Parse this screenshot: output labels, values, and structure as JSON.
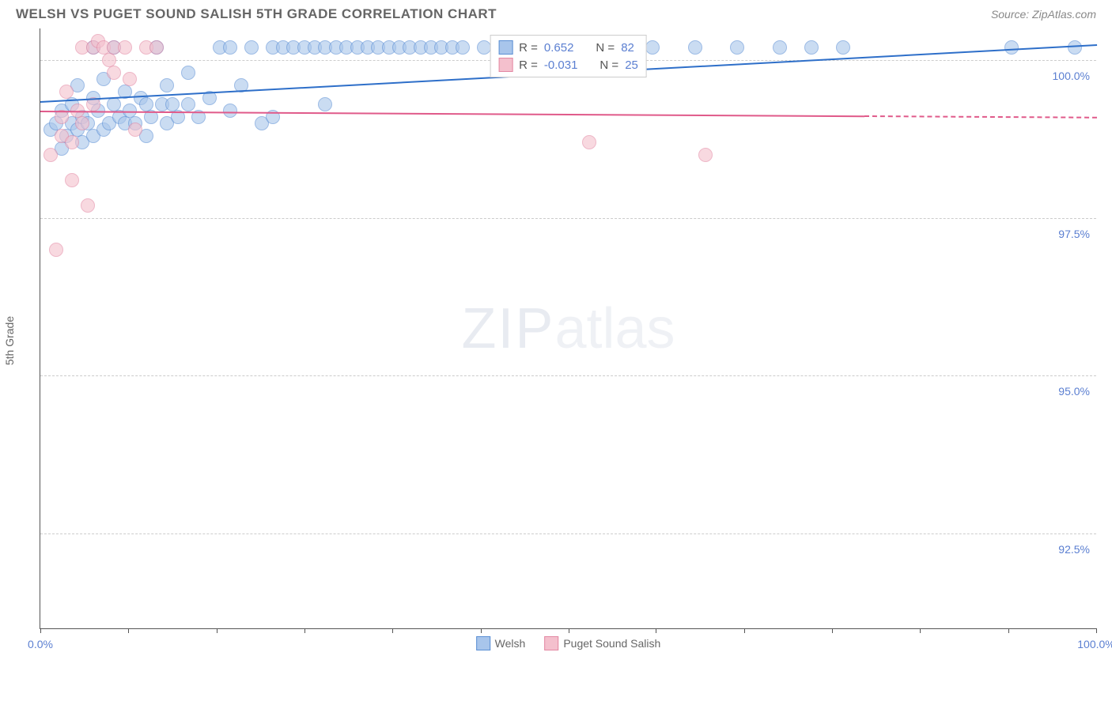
{
  "header": {
    "title": "WELSH VS PUGET SOUND SALISH 5TH GRADE CORRELATION CHART",
    "source": "Source: ZipAtlas.com"
  },
  "chart": {
    "type": "scatter",
    "y_axis_label": "5th Grade",
    "background_color": "#ffffff",
    "grid_color": "#cccccc",
    "axis_color": "#555555",
    "label_color": "#5b7fd1",
    "xlim": [
      0,
      100
    ],
    "ylim": [
      91.0,
      100.5
    ],
    "x_ticks": [
      0,
      8.3,
      16.7,
      25,
      33.3,
      41.7,
      50,
      58.3,
      66.7,
      75,
      83.3,
      91.7,
      100
    ],
    "x_tick_labels": {
      "0": "0.0%",
      "100": "100.0%"
    },
    "y_gridlines": [
      92.5,
      95.0,
      97.5,
      100.0
    ],
    "y_tick_labels": {
      "92.5": "92.5%",
      "95.0": "95.0%",
      "97.5": "97.5%",
      "100.0": "100.0%"
    },
    "marker_size": 18,
    "series": [
      {
        "name": "Welsh",
        "color_fill": "#a8c5eb",
        "color_border": "#5b8fd4",
        "trend_color": "#2e6fc9",
        "R": "0.652",
        "N": "82",
        "trend": {
          "x1": 0,
          "y1": 99.35,
          "x2": 100,
          "y2": 100.25,
          "solid_end_x": 100
        },
        "points": [
          [
            1,
            98.9
          ],
          [
            1.5,
            99.0
          ],
          [
            2,
            98.6
          ],
          [
            2,
            99.2
          ],
          [
            2.5,
            98.8
          ],
          [
            3,
            99.0
          ],
          [
            3,
            99.3
          ],
          [
            3.5,
            98.9
          ],
          [
            3.5,
            99.6
          ],
          [
            4,
            98.7
          ],
          [
            4,
            99.1
          ],
          [
            4.5,
            99.0
          ],
          [
            5,
            98.8
          ],
          [
            5,
            99.4
          ],
          [
            5,
            100.2
          ],
          [
            5.5,
            99.2
          ],
          [
            6,
            98.9
          ],
          [
            6,
            99.7
          ],
          [
            6.5,
            99.0
          ],
          [
            7,
            99.3
          ],
          [
            7,
            100.2
          ],
          [
            7.5,
            99.1
          ],
          [
            8,
            99.0
          ],
          [
            8,
            99.5
          ],
          [
            8.5,
            99.2
          ],
          [
            9,
            99.0
          ],
          [
            9.5,
            99.4
          ],
          [
            10,
            98.8
          ],
          [
            10,
            99.3
          ],
          [
            10.5,
            99.1
          ],
          [
            11,
            100.2
          ],
          [
            11.5,
            99.3
          ],
          [
            12,
            99.0
          ],
          [
            12,
            99.6
          ],
          [
            12.5,
            99.3
          ],
          [
            13,
            99.1
          ],
          [
            14,
            99.3
          ],
          [
            14,
            99.8
          ],
          [
            15,
            99.1
          ],
          [
            16,
            99.4
          ],
          [
            17,
            100.2
          ],
          [
            18,
            99.2
          ],
          [
            18,
            100.2
          ],
          [
            19,
            99.6
          ],
          [
            20,
            100.2
          ],
          [
            21,
            99.0
          ],
          [
            22,
            100.2
          ],
          [
            22,
            99.1
          ],
          [
            23,
            100.2
          ],
          [
            24,
            100.2
          ],
          [
            25,
            100.2
          ],
          [
            26,
            100.2
          ],
          [
            27,
            100.2
          ],
          [
            27,
            99.3
          ],
          [
            28,
            100.2
          ],
          [
            29,
            100.2
          ],
          [
            30,
            100.2
          ],
          [
            31,
            100.2
          ],
          [
            32,
            100.2
          ],
          [
            33,
            100.2
          ],
          [
            34,
            100.2
          ],
          [
            35,
            100.2
          ],
          [
            36,
            100.2
          ],
          [
            37,
            100.2
          ],
          [
            38,
            100.2
          ],
          [
            39,
            100.2
          ],
          [
            40,
            100.2
          ],
          [
            42,
            100.2
          ],
          [
            44,
            100.2
          ],
          [
            48,
            100.2
          ],
          [
            50,
            100.2
          ],
          [
            52,
            100.2
          ],
          [
            54,
            100.2
          ],
          [
            56,
            100.2
          ],
          [
            58,
            100.2
          ],
          [
            62,
            100.2
          ],
          [
            66,
            100.2
          ],
          [
            70,
            100.2
          ],
          [
            73,
            100.2
          ],
          [
            76,
            100.2
          ],
          [
            92,
            100.2
          ],
          [
            98,
            100.2
          ]
        ]
      },
      {
        "name": "Puget Sound Salish",
        "color_fill": "#f4c0cd",
        "color_border": "#e388a3",
        "trend_color": "#e05a8a",
        "R": "-0.031",
        "N": "25",
        "trend": {
          "x1": 0,
          "y1": 99.2,
          "x2": 100,
          "y2": 99.1,
          "solid_end_x": 78
        },
        "points": [
          [
            1,
            98.5
          ],
          [
            1.5,
            97.0
          ],
          [
            2,
            98.8
          ],
          [
            2,
            99.1
          ],
          [
            2.5,
            99.5
          ],
          [
            3,
            98.7
          ],
          [
            3,
            98.1
          ],
          [
            3.5,
            99.2
          ],
          [
            4,
            99.0
          ],
          [
            4,
            100.2
          ],
          [
            4.5,
            97.7
          ],
          [
            5,
            100.2
          ],
          [
            5,
            99.3
          ],
          [
            5.5,
            100.3
          ],
          [
            6,
            100.2
          ],
          [
            6.5,
            100.0
          ],
          [
            7,
            99.8
          ],
          [
            7,
            100.2
          ],
          [
            8,
            100.2
          ],
          [
            8.5,
            99.7
          ],
          [
            9,
            98.9
          ],
          [
            10,
            100.2
          ],
          [
            11,
            100.2
          ],
          [
            52,
            98.7
          ],
          [
            63,
            98.5
          ]
        ]
      }
    ],
    "legend_top": {
      "rows": [
        {
          "swatch_fill": "#a8c5eb",
          "swatch_border": "#5b8fd4",
          "r_label": "R =",
          "r_val": "0.652",
          "n_label": "N =",
          "n_val": "82"
        },
        {
          "swatch_fill": "#f4c0cd",
          "swatch_border": "#e388a3",
          "r_label": "R =",
          "r_val": "-0.031",
          "n_label": "N =",
          "n_val": "25"
        }
      ]
    },
    "legend_bottom": [
      {
        "swatch_fill": "#a8c5eb",
        "swatch_border": "#5b8fd4",
        "label": "Welsh"
      },
      {
        "swatch_fill": "#f4c0cd",
        "swatch_border": "#e388a3",
        "label": "Puget Sound Salish"
      }
    ],
    "watermark": {
      "part1": "ZIP",
      "part2": "atlas"
    }
  }
}
